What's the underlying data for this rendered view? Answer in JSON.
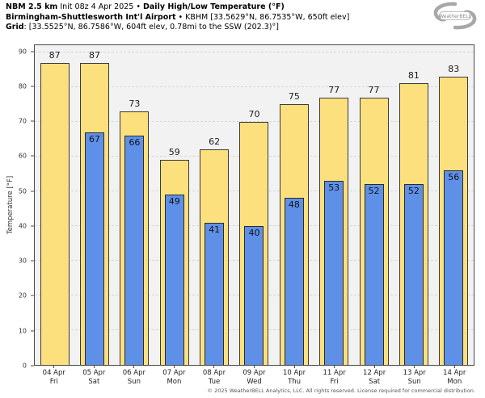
{
  "header": {
    "product": "NBM 2.5 km",
    "init": "Init 08z 4 Apr 2025",
    "bullet": "•",
    "title": "Daily High/Low Temperature (°F)",
    "station": "Birmingham-Shuttlesworth Int'l Airport",
    "station_details": "KBHM [33.5629°N, 86.7535°W, 650ft elev]",
    "grid_label": "Grid",
    "grid_details": ": [33.5525°N, 86.7586°W, 604ft elev, 0.78mi to the SSW (202.3)°]"
  },
  "logo": {
    "text": "WeatherBELL"
  },
  "chart_data": {
    "type": "bar",
    "title": "NBM 2.5 km Daily High/Low Temperature (°F) — KBHM Birmingham-Shuttlesworth Int'l Airport",
    "categories": [
      "04 Apr",
      "05 Apr",
      "06 Apr",
      "07 Apr",
      "08 Apr",
      "09 Apr",
      "10 Apr",
      "11 Apr",
      "12 Apr",
      "13 Apr",
      "14 Apr"
    ],
    "weekdays": [
      "Fri",
      "Sat",
      "Sun",
      "Mon",
      "Tue",
      "Wed",
      "Thu",
      "Fri",
      "Sat",
      "Sun",
      "Mon"
    ],
    "series": [
      {
        "name": "Daily High",
        "color": "#FCE07D",
        "values": [
          87,
          87,
          73,
          59,
          62,
          70,
          75,
          77,
          77,
          81,
          83
        ]
      },
      {
        "name": "Daily Low",
        "color": "#5F90E8",
        "values": [
          null,
          67,
          66,
          49,
          41,
          40,
          48,
          53,
          52,
          52,
          56
        ]
      }
    ],
    "ylabel": "Temperature [°F]",
    "xlabel": "",
    "ylim": [
      0,
      92
    ],
    "yticks": [
      0,
      10,
      20,
      30,
      40,
      50,
      60,
      70,
      80,
      90
    ],
    "grid": "horizontal-dashed",
    "legend": "none",
    "plot_bg": "#f2f2f2",
    "bar_border_color": "#3a3a3a"
  },
  "footer": {
    "copyright": "© 2025 WeatherBELL Analytics, LLC. All rights reserved. License required for commercial distribution."
  }
}
